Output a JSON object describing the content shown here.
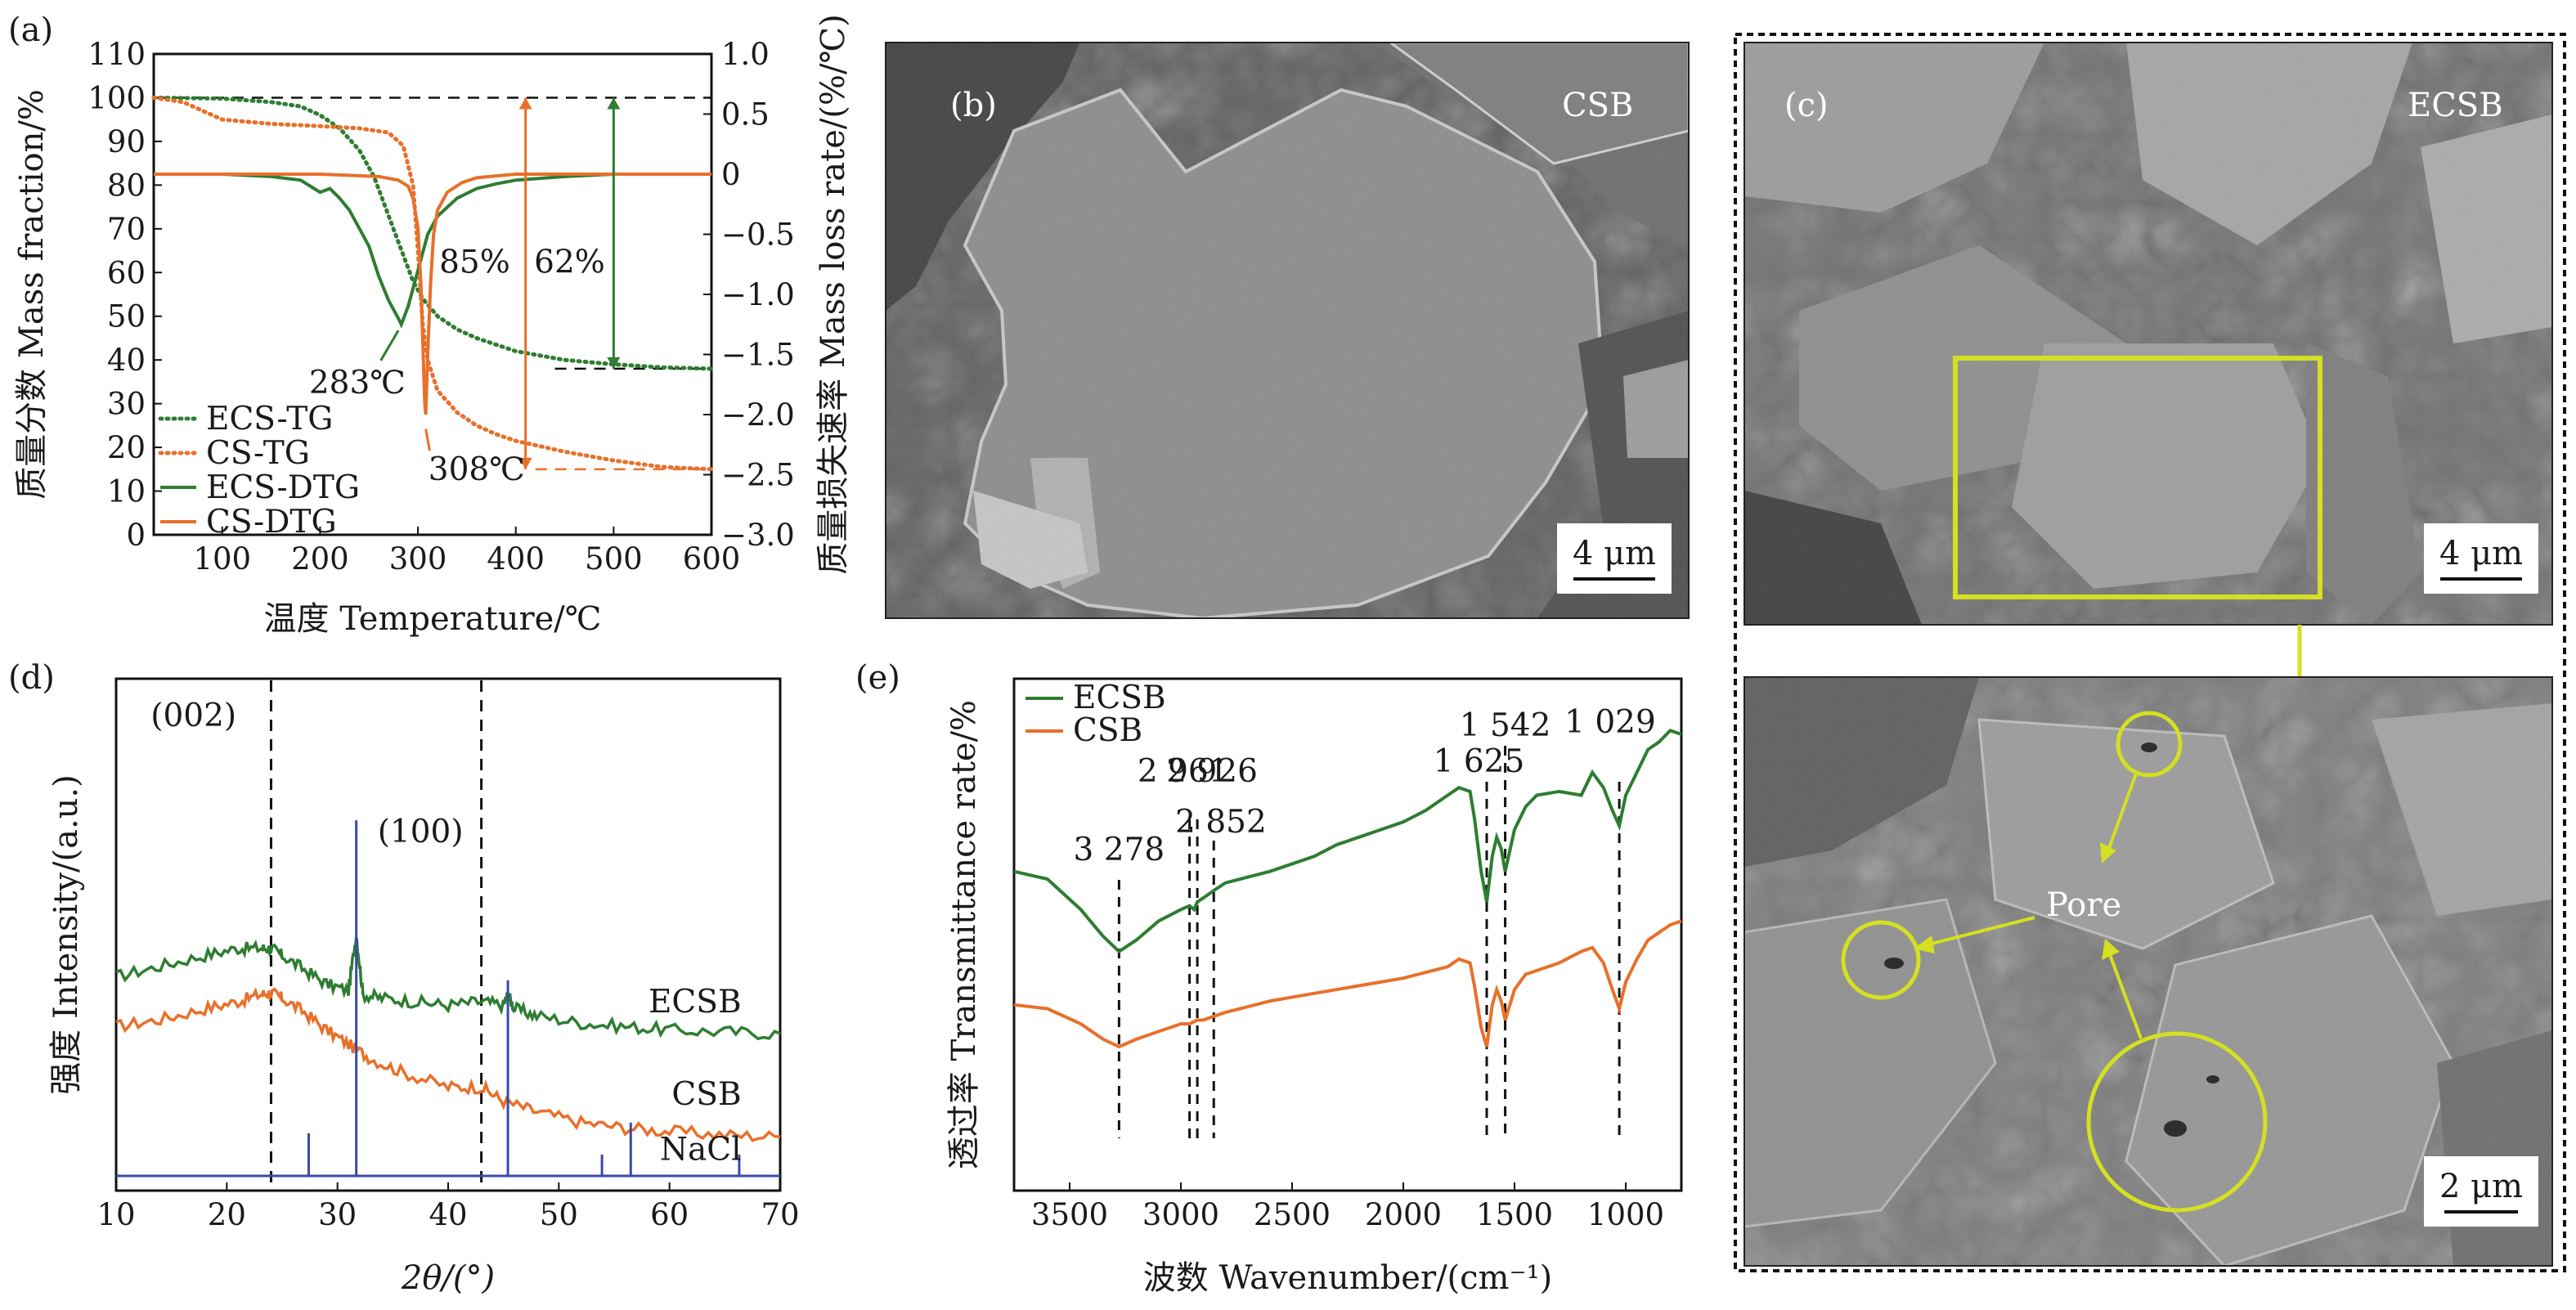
{
  "panels": {
    "a": "(a)",
    "b": "(b)",
    "c": "(c)",
    "d": "(d)",
    "e": "(e)"
  },
  "sem": {
    "b_label": "CSB",
    "b_scale": "4 μm",
    "c_label": "ECSB",
    "c_scale": "4 μm",
    "c2_scale": "2 μm",
    "pore_label": "Pore"
  },
  "colors": {
    "green": "#2e7d32",
    "orange": "#e8702a",
    "blue": "#3949ab",
    "highlight": "#d4e021"
  },
  "chart_data": [
    {
      "id": "a",
      "type": "line",
      "xlabel": "温度 Temperature/℃",
      "ylabel": "质量分数 Mass fraction/%",
      "y2label": "质量损失速率 Mass loss rate/(%/℃)",
      "xlim": [
        30,
        600
      ],
      "ylim": [
        0,
        110
      ],
      "y2lim": [
        -3.0,
        1.0
      ],
      "xticks": [
        100,
        200,
        300,
        400,
        500,
        600
      ],
      "yticks": [
        0,
        10,
        20,
        30,
        40,
        50,
        60,
        70,
        80,
        90,
        100,
        110
      ],
      "y2ticks": [
        "1.0",
        "0.5",
        "0",
        "−0.5",
        "−1.0",
        "−1.5",
        "−2.0",
        "−2.5",
        "−3.0"
      ],
      "legend": [
        "ECS-TG",
        "CS-TG",
        "ECS-DTG",
        "CS-DTG"
      ],
      "annotations": {
        "ecs_peak": "283℃",
        "cs_peak": "308℃",
        "cs_loss": "85%",
        "ecs_loss": "62%"
      },
      "series": [
        {
          "name": "ECS-TG",
          "axis": "left",
          "style": "dotted",
          "color": "#2e7d32",
          "x": [
            30,
            100,
            150,
            180,
            200,
            220,
            240,
            255,
            265,
            275,
            285,
            295,
            305,
            320,
            340,
            360,
            380,
            400,
            450,
            500,
            550,
            600
          ],
          "y": [
            100,
            99.8,
            99,
            98,
            96,
            93,
            88,
            82,
            76,
            70,
            64,
            58,
            54,
            50,
            47,
            45,
            43.5,
            42,
            40,
            39,
            38.3,
            38
          ]
        },
        {
          "name": "CS-TG",
          "axis": "left",
          "style": "dotted",
          "color": "#e8702a",
          "x": [
            30,
            60,
            80,
            100,
            150,
            200,
            240,
            270,
            285,
            295,
            300,
            305,
            310,
            320,
            340,
            360,
            380,
            400,
            450,
            500,
            550,
            600
          ],
          "y": [
            100,
            99,
            97,
            95,
            94,
            93.5,
            93,
            92,
            89,
            80,
            65,
            48,
            40,
            33,
            28,
            25,
            23,
            21.5,
            19,
            17,
            15.5,
            15
          ]
        },
        {
          "name": "ECS-DTG",
          "axis": "right",
          "style": "solid",
          "color": "#2e7d32",
          "x": [
            30,
            100,
            150,
            180,
            200,
            210,
            220,
            230,
            240,
            250,
            260,
            270,
            280,
            283,
            290,
            300,
            310,
            320,
            340,
            360,
            380,
            400,
            450,
            500,
            600
          ],
          "y": [
            0,
            0,
            -0.02,
            -0.05,
            -0.15,
            -0.12,
            -0.2,
            -0.3,
            -0.45,
            -0.6,
            -0.85,
            -1.05,
            -1.2,
            -1.25,
            -1.1,
            -0.8,
            -0.5,
            -0.35,
            -0.2,
            -0.12,
            -0.08,
            -0.05,
            -0.02,
            0,
            0
          ]
        },
        {
          "name": "CS-DTG",
          "axis": "right",
          "style": "solid",
          "color": "#e8702a",
          "x": [
            30,
            100,
            200,
            260,
            280,
            290,
            295,
            300,
            303,
            305,
            307,
            308,
            310,
            313,
            316,
            320,
            330,
            345,
            360,
            400,
            500,
            600
          ],
          "y": [
            0,
            0,
            0,
            -0.02,
            -0.05,
            -0.1,
            -0.2,
            -0.45,
            -0.9,
            -1.4,
            -1.9,
            -2.0,
            -1.5,
            -0.9,
            -0.5,
            -0.3,
            -0.15,
            -0.07,
            -0.03,
            0,
            0,
            0
          ]
        }
      ]
    },
    {
      "id": "d",
      "type": "line",
      "xlabel": "2θ/(°)",
      "ylabel": "强度 Intensity/(a.u.)",
      "xlim": [
        10,
        70
      ],
      "xticks": [
        10,
        20,
        30,
        40,
        50,
        60,
        70
      ],
      "peaks": [
        "(002)",
        "(100)"
      ],
      "series_labels": [
        "ECSB",
        "CSB",
        "NaCl"
      ],
      "series": [
        {
          "name": "ECSB",
          "color": "#2e7d32",
          "x": [
            10,
            14,
            18,
            21,
            23,
            24,
            25,
            27,
            29,
            31,
            31.7,
            32.3,
            34,
            37,
            40,
            43,
            45,
            45.4,
            46,
            48,
            52,
            56,
            60,
            65,
            70
          ],
          "y": [
            0.7,
            0.67,
            0.64,
            0.62,
            0.62,
            0.62,
            0.64,
            0.68,
            0.72,
            0.74,
            0.58,
            0.75,
            0.76,
            0.77,
            0.78,
            0.77,
            0.78,
            0.75,
            0.79,
            0.81,
            0.83,
            0.84,
            0.85,
            0.855,
            0.86
          ]
        },
        {
          "name": "CSB",
          "color": "#e8702a",
          "x": [
            10,
            14,
            18,
            21,
            23,
            24,
            25,
            27,
            29,
            31,
            33,
            36,
            40,
            43,
            45,
            48,
            52,
            56,
            60,
            65,
            70
          ],
          "y": [
            0.84,
            0.82,
            0.79,
            0.77,
            0.75,
            0.745,
            0.76,
            0.8,
            0.85,
            0.89,
            0.93,
            0.97,
            1.01,
            1.01,
            1.05,
            1.08,
            1.11,
            1.125,
            1.135,
            1.145,
            1.15
          ]
        },
        {
          "name": "NaCl",
          "color": "#3949ab",
          "type": "stick",
          "x": [
            27.4,
            31.7,
            45.4,
            53.9,
            56.5,
            66.3
          ],
          "y": [
            0.012,
            0.1,
            0.055,
            0.006,
            0.015,
            0.006
          ]
        }
      ],
      "vlines": [
        24,
        43
      ]
    },
    {
      "id": "e",
      "type": "line",
      "xlabel": "波数 Wavenumber/(cm⁻¹)",
      "ylabel": "透过率 Transmittance rate/%",
      "xlim": [
        3750,
        750
      ],
      "xticks": [
        3500,
        3000,
        2500,
        2000,
        1500,
        1000
      ],
      "legend": [
        "ECSB",
        "CSB"
      ],
      "peaks": [
        "3 278",
        "2 961",
        "2 926",
        "2 852",
        "1 625",
        "1 542",
        "1 029"
      ],
      "series": [
        {
          "name": "ECSB",
          "color": "#2e7d32",
          "x": [
            3750,
            3600,
            3450,
            3350,
            3278,
            3200,
            3100,
            3000,
            2961,
            2940,
            2926,
            2900,
            2852,
            2800,
            2600,
            2400,
            2300,
            2200,
            2100,
            2000,
            1900,
            1800,
            1750,
            1700,
            1680,
            1650,
            1625,
            1600,
            1580,
            1560,
            1542,
            1500,
            1450,
            1400,
            1300,
            1200,
            1150,
            1100,
            1060,
            1029,
            1000,
            950,
            900,
            850,
            800,
            750
          ],
          "y": [
            0.42,
            0.44,
            0.52,
            0.59,
            0.63,
            0.6,
            0.55,
            0.52,
            0.51,
            0.52,
            0.5,
            0.49,
            0.47,
            0.45,
            0.42,
            0.38,
            0.35,
            0.33,
            0.31,
            0.29,
            0.26,
            0.22,
            0.2,
            0.21,
            0.28,
            0.42,
            0.5,
            0.38,
            0.33,
            0.36,
            0.42,
            0.31,
            0.25,
            0.22,
            0.21,
            0.22,
            0.16,
            0.2,
            0.26,
            0.3,
            0.22,
            0.16,
            0.1,
            0.08,
            0.05,
            0.06
          ]
        },
        {
          "name": "CSB",
          "color": "#e8702a",
          "x": [
            3750,
            3600,
            3450,
            3350,
            3278,
            3200,
            3100,
            3000,
            2961,
            2926,
            2900,
            2852,
            2800,
            2600,
            2400,
            2200,
            2000,
            1800,
            1750,
            1700,
            1680,
            1650,
            1625,
            1600,
            1580,
            1560,
            1542,
            1500,
            1450,
            1400,
            1300,
            1200,
            1150,
            1100,
            1060,
            1029,
            1000,
            950,
            900,
            850,
            800,
            750
          ],
          "y": [
            0.77,
            0.78,
            0.82,
            0.86,
            0.88,
            0.86,
            0.84,
            0.82,
            0.82,
            0.81,
            0.81,
            0.8,
            0.79,
            0.76,
            0.74,
            0.72,
            0.7,
            0.67,
            0.65,
            0.66,
            0.72,
            0.83,
            0.88,
            0.77,
            0.73,
            0.76,
            0.81,
            0.73,
            0.69,
            0.68,
            0.66,
            0.63,
            0.62,
            0.66,
            0.73,
            0.78,
            0.71,
            0.65,
            0.6,
            0.58,
            0.56,
            0.55
          ]
        }
      ]
    }
  ]
}
